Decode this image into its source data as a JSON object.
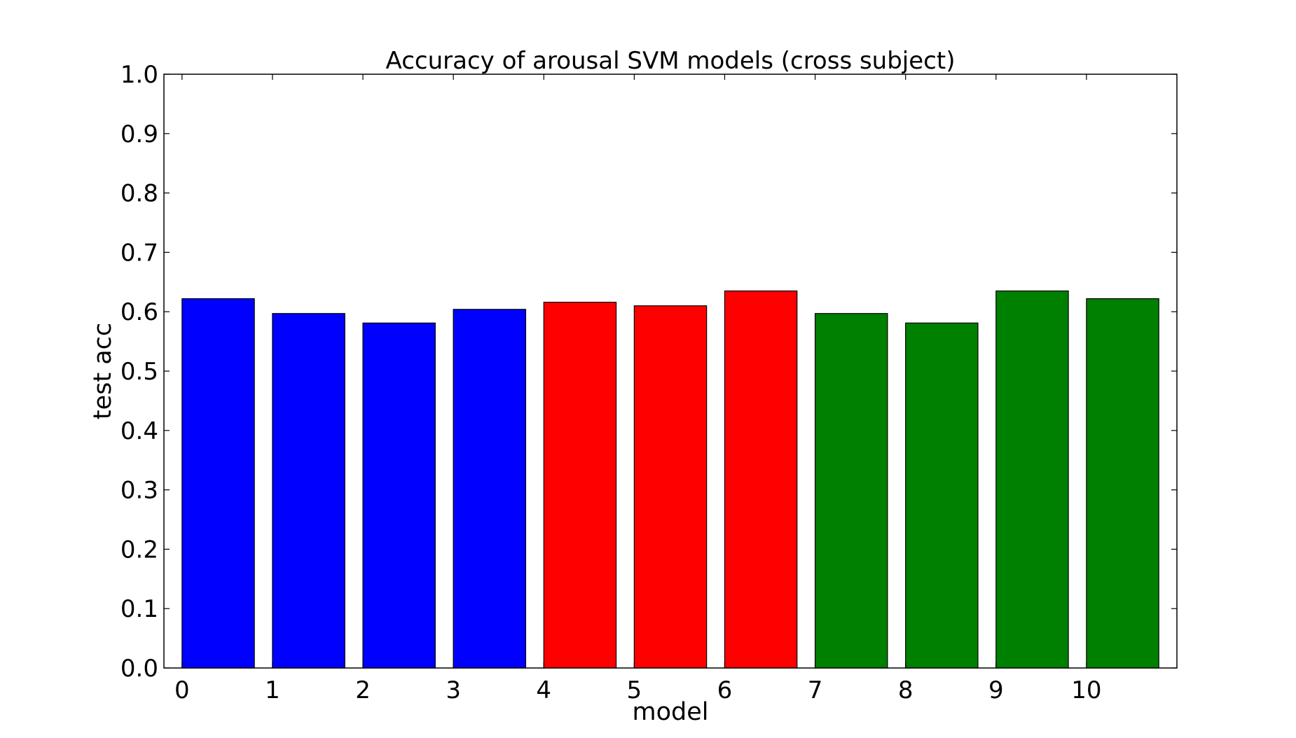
{
  "chart_data": {
    "type": "bar",
    "title": "Accuracy of arousal SVM models (cross subject)",
    "xlabel": "model",
    "ylabel": "test acc",
    "categories": [
      "0",
      "1",
      "2",
      "3",
      "4",
      "5",
      "6",
      "7",
      "8",
      "9",
      "10"
    ],
    "values": [
      0.622,
      0.597,
      0.581,
      0.604,
      0.616,
      0.61,
      0.635,
      0.597,
      0.581,
      0.635,
      0.622
    ],
    "bar_colors": [
      "#0000ff",
      "#0000ff",
      "#0000ff",
      "#0000ff",
      "#ff0000",
      "#ff0000",
      "#ff0000",
      "#008000",
      "#008000",
      "#008000",
      "#008000"
    ],
    "bar_width": 0.8,
    "xlim": [
      -0.2,
      11.0
    ],
    "ylim": [
      0.0,
      1.0
    ],
    "yticks": [
      "0.0",
      "0.1",
      "0.2",
      "0.3",
      "0.4",
      "0.5",
      "0.6",
      "0.7",
      "0.8",
      "0.9",
      "1.0"
    ],
    "xticks": [
      "0",
      "1",
      "2",
      "3",
      "4",
      "5",
      "6",
      "7",
      "8",
      "9",
      "10"
    ],
    "grid": false,
    "legend": "none"
  }
}
